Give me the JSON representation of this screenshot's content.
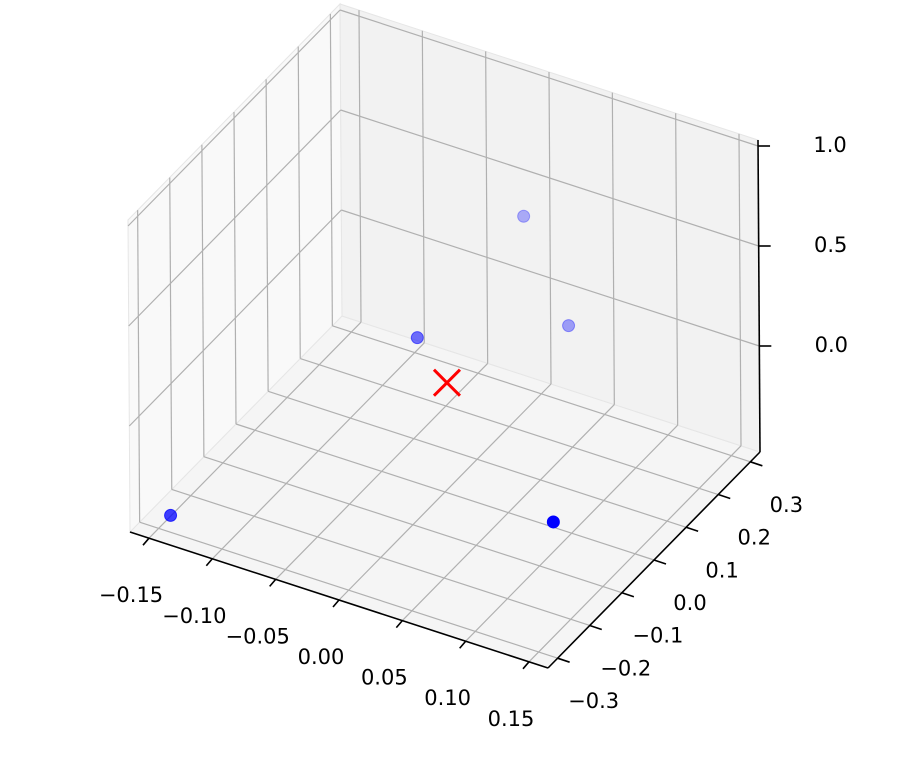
{
  "chart_data": {
    "type": "scatter3d",
    "series": [
      {
        "color": "#0000ff",
        "marker": "o",
        "x": [
          -0.141,
          0.138,
          -0.015,
          0.014,
          0.05
        ],
        "y": [
          -0.298,
          -0.205,
          -0.024,
          0.194,
          0.19
        ],
        "z": [
          -0.45,
          -0.06,
          0.25,
          0.56,
          0.094
        ]
      },
      {
        "color": "#ff0000",
        "marker": "x",
        "x": [
          0.009
        ],
        "y": [
          -0.027
        ],
        "z": [
          0.079
        ]
      }
    ],
    "xlim": [
      -0.165,
      0.165
    ],
    "ylim": [
      -0.33,
      0.33
    ],
    "zlim": [
      -0.53,
      1.03
    ],
    "xticks": [
      {
        "value": -0.15,
        "label": "−0.15"
      },
      {
        "value": -0.1,
        "label": "−0.10"
      },
      {
        "value": -0.05,
        "label": "−0.05"
      },
      {
        "value": 0,
        "label": "0.00"
      },
      {
        "value": 0.05,
        "label": "0.05"
      },
      {
        "value": 0.1,
        "label": "0.10"
      },
      {
        "value": 0.15,
        "label": "0.15"
      }
    ],
    "yticks": [
      {
        "value": -0.3,
        "label": "−0.3"
      },
      {
        "value": -0.2,
        "label": "−0.2"
      },
      {
        "value": -0.1,
        "label": "−0.1"
      },
      {
        "value": 0,
        "label": "0.0"
      },
      {
        "value": 0.1,
        "label": "0.1"
      },
      {
        "value": 0.2,
        "label": "0.2"
      },
      {
        "value": 0.3,
        "label": "0.3"
      }
    ],
    "zticks": [
      {
        "value": 0,
        "label": "0.0"
      },
      {
        "value": 0.5,
        "label": "0.5"
      },
      {
        "value": 1,
        "label": "1.0"
      }
    ],
    "grid": true,
    "depthshade": true
  }
}
